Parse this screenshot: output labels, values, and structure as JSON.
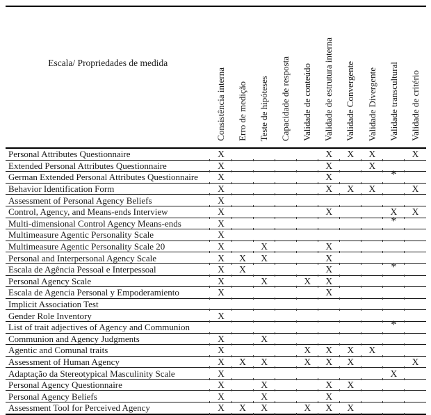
{
  "table": {
    "corner_header": "Escala/ Propriedades de medida",
    "columns": [
      "Consistência interna",
      "Erro de medição",
      "Teste de hipóteses",
      "Capacidade de resposta",
      "Validade de conteúdo",
      "Validade de estrutura interna",
      "Validade Convergente",
      "Validade Divergente",
      "Validade transcultural",
      "Validade de critério"
    ],
    "mark_symbol": "X",
    "footnote_symbol": "*",
    "rows": [
      {
        "label": "Personal Attributes Questionnaire",
        "marks": [
          "X",
          "",
          "",
          "",
          "",
          "X",
          "X",
          "X",
          "",
          "X"
        ]
      },
      {
        "label": "Extended Personal Attributes Questionnaire",
        "marks": [
          "X",
          "",
          "",
          "",
          "",
          "X",
          "",
          "X",
          "",
          ""
        ]
      },
      {
        "label": "German Extended Personal Attributes Questionnaire",
        "marks": [
          "X",
          "",
          "",
          "",
          "",
          "X",
          "",
          "",
          "*",
          ""
        ]
      },
      {
        "label": "Behavior Identification Form",
        "marks": [
          "X",
          "",
          "",
          "",
          "",
          "X",
          "X",
          "X",
          "",
          "X"
        ]
      },
      {
        "label": "Assessment of Personal Agency Beliefs",
        "marks": [
          "X",
          "",
          "",
          "",
          "",
          "",
          "",
          "",
          "",
          ""
        ]
      },
      {
        "label": "Control, Agency, and Means-ends Interview",
        "marks": [
          "X",
          "",
          "",
          "",
          "",
          "X",
          "",
          "",
          "X",
          "X"
        ]
      },
      {
        "label": "Multi-dimensional Control Agency Means-ends",
        "marks": [
          "X",
          "",
          "",
          "",
          "",
          "",
          "",
          "",
          "*",
          ""
        ]
      },
      {
        "label": "Multimeasure Agentic Personality Scale",
        "marks": [
          "X",
          "",
          "",
          "",
          "",
          "",
          "",
          "",
          "",
          ""
        ]
      },
      {
        "label": "Multimeasure Agentic Personality Scale 20",
        "marks": [
          "X",
          "",
          "X",
          "",
          "",
          "X",
          "",
          "",
          "",
          ""
        ]
      },
      {
        "label": "Personal and Interpersonal Agency Scale",
        "marks": [
          "X",
          "X",
          "X",
          "",
          "",
          "X",
          "",
          "",
          "",
          ""
        ]
      },
      {
        "label": "Escala de Agência Pessoal e Interpessoal",
        "marks": [
          "X",
          "X",
          "",
          "",
          "",
          "X",
          "",
          "",
          "*",
          ""
        ]
      },
      {
        "label": "Personal Agency Scale",
        "marks": [
          "X",
          "",
          "X",
          "",
          "X",
          "X",
          "",
          "",
          "",
          ""
        ]
      },
      {
        "label": "Escala de Agencia Personal y Empoderamiento",
        "marks": [
          "X",
          "",
          "",
          "",
          "",
          "X",
          "",
          "",
          "",
          ""
        ]
      },
      {
        "label": "Implicit Association Test",
        "marks": [
          "",
          "",
          "",
          "",
          "",
          "",
          "",
          "",
          "",
          ""
        ]
      },
      {
        "label": "Gender Role Inventory",
        "marks": [
          "X",
          "",
          "",
          "",
          "",
          "",
          "",
          "",
          "",
          ""
        ]
      },
      {
        "label": "List of trait adjectives of Agency and Communion",
        "marks": [
          "",
          "",
          "",
          "",
          "",
          "",
          "",
          "",
          "*",
          ""
        ]
      },
      {
        "label": "Communion and Agency Judgments",
        "marks": [
          "X",
          "",
          "X",
          "",
          "",
          "",
          "",
          "",
          "",
          ""
        ]
      },
      {
        "label": "Agentic and Comunal traits",
        "marks": [
          "X",
          "",
          "",
          "",
          "X",
          "X",
          "X",
          "X",
          "",
          ""
        ]
      },
      {
        "label": "Assessment of Human Agency",
        "marks": [
          "X",
          "X",
          "X",
          "",
          "X",
          "X",
          "X",
          "",
          "",
          "X"
        ]
      },
      {
        "label": "Adaptação da Stereotypical Masculinity Scale",
        "marks": [
          "X",
          "",
          "",
          "",
          "",
          "",
          "",
          "",
          "X",
          ""
        ]
      },
      {
        "label": "Personal Agency Questionnaire",
        "marks": [
          "X",
          "",
          "X",
          "",
          "",
          "X",
          "X",
          "",
          "",
          ""
        ]
      },
      {
        "label": "Personal Agency Beliefs",
        "marks": [
          "X",
          "",
          "X",
          "",
          "",
          "X",
          "",
          "",
          "",
          ""
        ]
      },
      {
        "label": "Assessment Tool for Perceived Agency",
        "marks": [
          "X",
          "X",
          "X",
          "",
          "X",
          "X",
          "X",
          "",
          "",
          ""
        ]
      }
    ]
  },
  "colors": {
    "background": "#ffffff",
    "text": "#1a1a1a",
    "border_thick": "#000000",
    "border_thin": "#161616"
  }
}
